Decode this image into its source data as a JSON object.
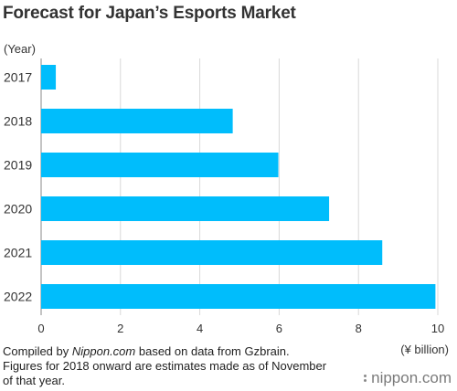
{
  "title": "Forecast for Japan’s Esports Market",
  "notes": {
    "line1_prefix": "Compiled by ",
    "line1_source": "Nippon.com",
    "line1_suffix": " based on data from Gzbrain.",
    "line2": "Figures for 2018 onward are estimates made as of November",
    "line3": "of that year."
  },
  "logo": {
    "text": "nippon.com"
  },
  "chart_data": {
    "type": "bar",
    "orientation": "horizontal",
    "title": "Forecast for Japan’s Esports Market",
    "ylabel": "(Year)",
    "xlabel": "(¥ billion)",
    "categories": [
      "2017",
      "2018",
      "2019",
      "2020",
      "2021",
      "2022"
    ],
    "values": [
      0.37,
      4.83,
      5.98,
      7.26,
      8.6,
      9.94
    ],
    "xlim": [
      0,
      10
    ],
    "xticks": [
      0,
      2,
      4,
      6,
      8,
      10
    ],
    "grid": true,
    "bar_color": "#00bdfc",
    "grid_color": "#d9d9d9"
  }
}
